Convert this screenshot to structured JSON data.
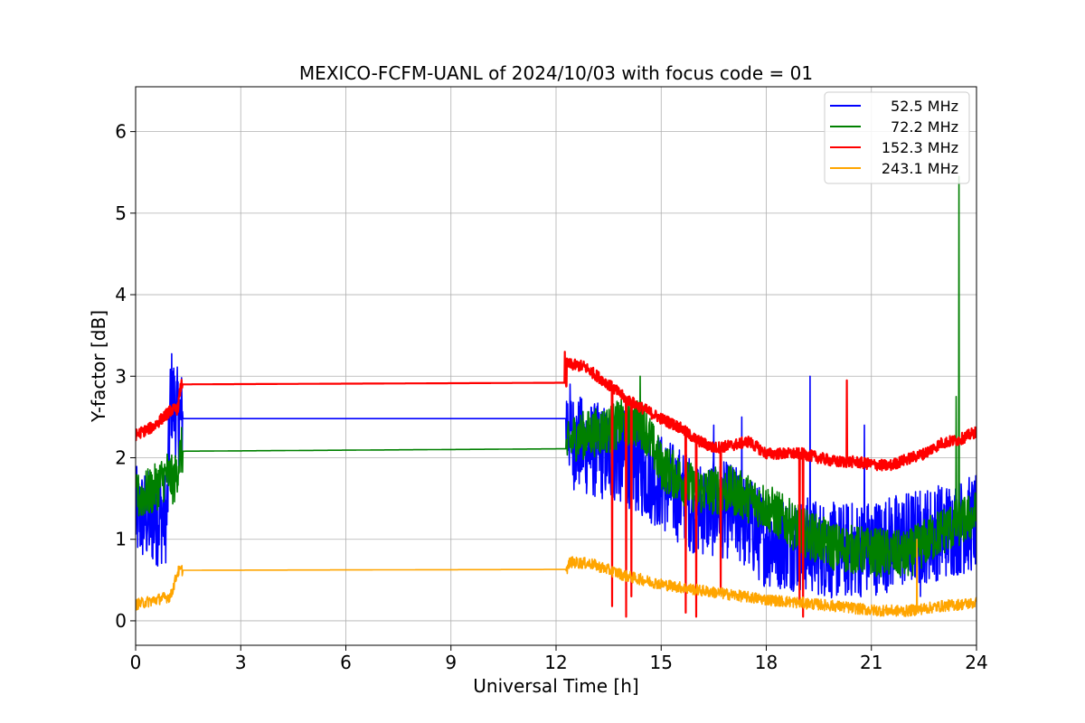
{
  "chart_data": {
    "type": "line",
    "title": "MEXICO-FCFM-UANL of 2024/10/03 with focus code = 01",
    "xlabel": "Universal Time [h]",
    "ylabel": "Y-factor [dB]",
    "xlim": [
      0,
      24
    ],
    "ylim": [
      -0.3,
      6.55
    ],
    "xticks": [
      0,
      3,
      6,
      9,
      12,
      15,
      18,
      21,
      24
    ],
    "yticks": [
      0,
      1,
      2,
      3,
      4,
      5,
      6
    ],
    "xtick_labels": [
      "0",
      "3",
      "6",
      "9",
      "12",
      "15",
      "18",
      "21",
      "24"
    ],
    "ytick_labels": [
      "0",
      "1",
      "2",
      "3",
      "4",
      "5",
      "6"
    ],
    "grid": true,
    "legend_position": "top-right",
    "series": [
      {
        "name": " 52.5 MHz",
        "color": "#0000ff",
        "noise": 0.6,
        "points": [
          [
            0,
            1.3
          ],
          [
            0.5,
            1.25
          ],
          [
            0.9,
            1.3
          ],
          [
            1.0,
            2.8
          ],
          [
            1.2,
            2.5
          ],
          [
            1.3,
            2.48
          ],
          [
            12.3,
            2.48
          ],
          [
            12.5,
            2.2
          ],
          [
            13.0,
            2.1
          ],
          [
            14.0,
            2.0
          ],
          [
            15.0,
            1.7
          ],
          [
            16.0,
            1.4
          ],
          [
            17.0,
            1.35
          ],
          [
            18.0,
            1.0
          ],
          [
            19.0,
            0.95
          ],
          [
            20.0,
            0.85
          ],
          [
            21.0,
            0.9
          ],
          [
            22.0,
            1.0
          ],
          [
            23.0,
            1.1
          ],
          [
            24.0,
            1.2
          ]
        ],
        "spikes": [
          [
            19.25,
            3.0
          ],
          [
            17.3,
            2.5
          ],
          [
            20.8,
            2.4
          ],
          [
            16.5,
            2.4
          ],
          [
            22.4,
            0.3
          ]
        ]
      },
      {
        "name": " 72.2 MHz",
        "color": "#008000",
        "noise": 0.3,
        "points": [
          [
            0,
            1.5
          ],
          [
            0.5,
            1.6
          ],
          [
            0.9,
            1.8
          ],
          [
            1.1,
            1.7
          ],
          [
            1.3,
            2.08
          ],
          [
            12.3,
            2.11
          ],
          [
            12.5,
            2.25
          ],
          [
            13.0,
            2.3
          ],
          [
            13.5,
            2.35
          ],
          [
            14.0,
            2.45
          ],
          [
            14.5,
            2.4
          ],
          [
            15.0,
            1.9
          ],
          [
            16.0,
            1.6
          ],
          [
            17.0,
            1.6
          ],
          [
            18.0,
            1.4
          ],
          [
            19.0,
            1.1
          ],
          [
            20.0,
            0.9
          ],
          [
            21.0,
            0.85
          ],
          [
            22.0,
            0.8
          ],
          [
            23.0,
            1.1
          ],
          [
            24.0,
            1.3
          ]
        ],
        "spikes": [
          [
            23.5,
            5.45
          ],
          [
            23.42,
            2.75
          ],
          [
            14.4,
            3.0
          ]
        ]
      },
      {
        "name": " 152.3 MHz",
        "color": "#ff0000",
        "noise": 0.07,
        "points": [
          [
            0,
            2.28
          ],
          [
            0.5,
            2.38
          ],
          [
            1.0,
            2.58
          ],
          [
            1.2,
            2.6
          ],
          [
            1.3,
            2.9
          ],
          [
            12.3,
            2.92
          ],
          [
            12.3,
            3.15
          ],
          [
            12.8,
            3.12
          ],
          [
            13.5,
            2.9
          ],
          [
            14.0,
            2.72
          ],
          [
            14.5,
            2.6
          ],
          [
            15.0,
            2.48
          ],
          [
            15.5,
            2.38
          ],
          [
            16.0,
            2.22
          ],
          [
            16.5,
            2.12
          ],
          [
            17.0,
            2.15
          ],
          [
            17.5,
            2.2
          ],
          [
            18.0,
            2.05
          ],
          [
            19.0,
            2.05
          ],
          [
            20.0,
            1.95
          ],
          [
            20.5,
            1.95
          ],
          [
            21.0,
            1.92
          ],
          [
            21.5,
            1.9
          ],
          [
            22.0,
            1.98
          ],
          [
            22.5,
            2.05
          ],
          [
            23.0,
            2.18
          ],
          [
            23.5,
            2.22
          ],
          [
            24.0,
            2.32
          ]
        ],
        "spikes": [
          [
            13.6,
            0.18
          ],
          [
            14.0,
            0.05
          ],
          [
            14.15,
            0.3
          ],
          [
            15.7,
            0.1
          ],
          [
            16.0,
            0.05
          ],
          [
            16.7,
            0.4
          ],
          [
            18.95,
            0.2
          ],
          [
            19.05,
            0.05
          ],
          [
            20.3,
            2.95
          ],
          [
            12.25,
            3.3
          ]
        ]
      },
      {
        "name": " 243.1 MHz",
        "color": "#ffa500",
        "noise": 0.07,
        "points": [
          [
            0,
            0.2
          ],
          [
            0.5,
            0.25
          ],
          [
            1.0,
            0.3
          ],
          [
            1.2,
            0.6
          ],
          [
            1.3,
            0.62
          ],
          [
            12.3,
            0.63
          ],
          [
            12.4,
            0.72
          ],
          [
            13.0,
            0.7
          ],
          [
            14.0,
            0.55
          ],
          [
            15.0,
            0.45
          ],
          [
            16.0,
            0.38
          ],
          [
            17.0,
            0.32
          ],
          [
            18.0,
            0.26
          ],
          [
            19.0,
            0.22
          ],
          [
            20.0,
            0.18
          ],
          [
            21.0,
            0.13
          ],
          [
            22.0,
            0.12
          ],
          [
            23.0,
            0.18
          ],
          [
            24.0,
            0.22
          ]
        ],
        "spikes": [
          [
            22.3,
            1.0
          ]
        ]
      }
    ]
  }
}
